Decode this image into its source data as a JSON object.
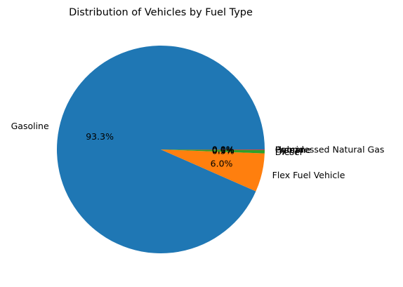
{
  "chart_data": {
    "type": "pie",
    "title": "Distribution of Vehicles by Fuel Type",
    "slices": [
      {
        "label": "Gasoline",
        "value": 93.3,
        "pct_label": "93.3%",
        "color": "#1f77b4"
      },
      {
        "label": "Flex Fuel Vehicle",
        "value": 6.0,
        "pct_label": "6.0%",
        "color": "#ff7f0e"
      },
      {
        "label": "Diesel",
        "value": 0.5,
        "pct_label": "0.5%",
        "color": "#2ca02c"
      },
      {
        "label": "Propane",
        "value": 0.1,
        "pct_label": "0.1%",
        "color": "#d62728"
      },
      {
        "label": "Hybrid",
        "value": 0.0,
        "pct_label": "0.0%",
        "color": "#9467bd"
      },
      {
        "label": "Compressed Natural Gas",
        "value": 0.0,
        "pct_label": "0.0%",
        "color": "#8c564b"
      }
    ],
    "start_angle_deg": 0,
    "direction": "counterclockwise",
    "legend": "none"
  }
}
